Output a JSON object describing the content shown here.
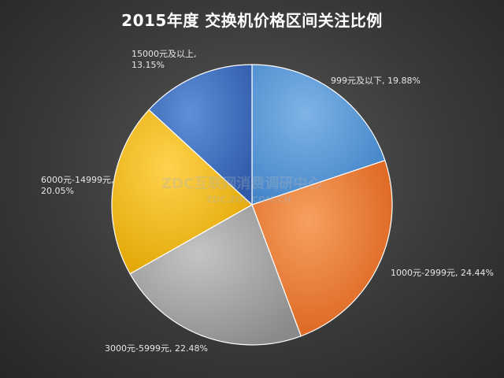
{
  "chart_data": {
    "type": "pie",
    "title": "2015年度 交换机价格区间关注比例",
    "slices": [
      {
        "label": "999元及以下",
        "value": 19.88,
        "text": "999元及以下, 19.88%",
        "color": "#5b9bd5"
      },
      {
        "label": "1000元-2999元",
        "value": 24.44,
        "text": "1000元-2999元, 24.44%",
        "color": "#ed7d31"
      },
      {
        "label": "3000元-5999元",
        "value": 22.48,
        "text": "3000元-5999元, 22.48%",
        "color": "#a5a5a5"
      },
      {
        "label": "6000元-14999元",
        "value": 20.05,
        "text_line1": "6000元-14999元,",
        "text_line2": "20.05%",
        "color": "#ffc000"
      },
      {
        "label": "15000元及以上",
        "value": 13.15,
        "text_line1": "15000元及以上,",
        "text_line2": "13.15%",
        "color": "#4472c4"
      }
    ]
  },
  "watermark": {
    "line1": "ZDC互联网消费调研中心",
    "line2": "ZDC.ZOL.COM.CN"
  }
}
